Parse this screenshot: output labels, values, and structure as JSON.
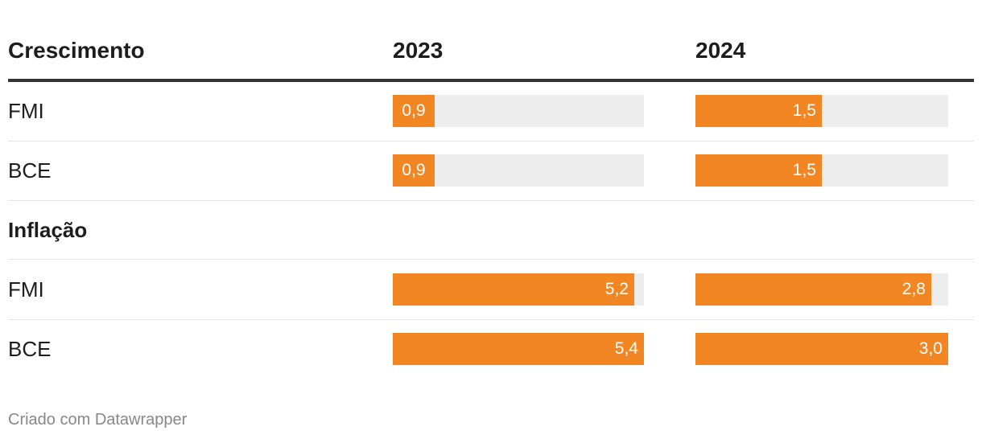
{
  "header": {
    "group1_label": "Crescimento",
    "col1": "2023",
    "col2": "2024"
  },
  "groups": [
    {
      "label": "Crescimento",
      "rows": [
        {
          "name": "FMI",
          "v2023": 0.9,
          "v2024": 1.5,
          "t2023": "0,9",
          "t2024": "1,5"
        },
        {
          "name": "BCE",
          "v2023": 0.9,
          "v2024": 1.5,
          "t2023": "0,9",
          "t2024": "1,5"
        }
      ]
    },
    {
      "label": "Inflação",
      "rows": [
        {
          "name": "FMI",
          "v2023": 5.2,
          "v2024": 2.8,
          "t2023": "5,2",
          "t2024": "2,8"
        },
        {
          "name": "BCE",
          "v2023": 5.4,
          "v2024": 3.0,
          "t2023": "5,4",
          "t2024": "3,0"
        }
      ]
    }
  ],
  "footer": "Criado com Datawrapper",
  "colors": {
    "bar": "#f28622",
    "track": "#ededed"
  },
  "chart_data": {
    "type": "bar",
    "columns": [
      "2023",
      "2024"
    ],
    "groups": [
      {
        "label": "Crescimento",
        "categories": [
          "FMI",
          "BCE"
        ],
        "series": [
          {
            "name": "2023",
            "values": [
              0.9,
              0.9
            ]
          },
          {
            "name": "2024",
            "values": [
              1.5,
              1.5
            ]
          }
        ]
      },
      {
        "label": "Inflação",
        "categories": [
          "FMI",
          "BCE"
        ],
        "series": [
          {
            "name": "2023",
            "values": [
              5.2,
              5.4
            ]
          },
          {
            "name": "2024",
            "values": [
              2.8,
              3.0
            ]
          }
        ]
      }
    ],
    "xlim_2023": [
      0,
      5.4
    ],
    "xlim_2024": [
      0,
      3.0
    ]
  }
}
